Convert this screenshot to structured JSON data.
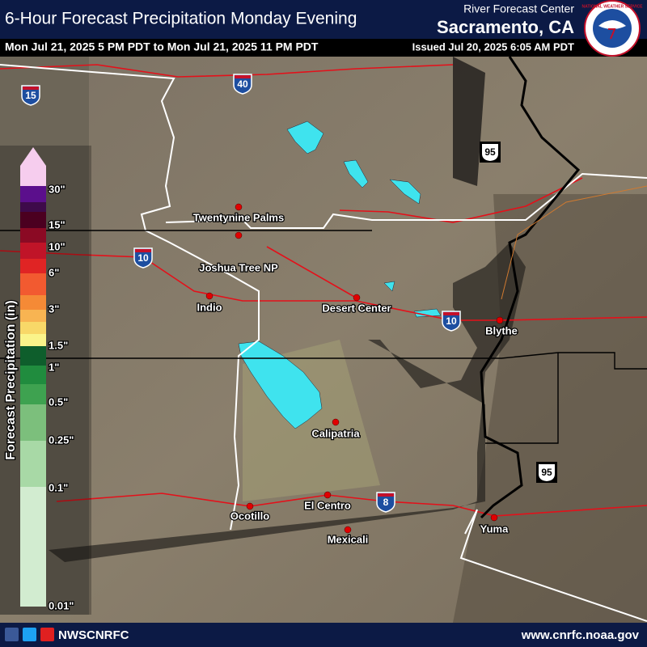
{
  "header": {
    "title": "6-Hour Forecast Precipitation Monday Evening",
    "valid_period": "Mon Jul 21, 2025 5 PM PDT to Mon Jul 21, 2025 11 PM PDT",
    "issued": "Issued Jul 20, 2025 6:05 AM PDT",
    "agency_line1": "River Forecast Center",
    "agency_line2": "Sacramento, CA",
    "logo_text": "NATIONAL WEATHER SERVICE"
  },
  "legend": {
    "title": "Forecast Precipitation (in)",
    "labels": [
      "30\"",
      "15\"",
      "10\"",
      "6\"",
      "3\"",
      "1.5\"",
      "1\"",
      "0.5\"",
      "0.25\"",
      "0.1\"",
      "0.01\""
    ],
    "colors": [
      "#f6cdee",
      "#5b0f8c",
      "#3e0a4a",
      "#4b0020",
      "#8b0a24",
      "#c01428",
      "#e02424",
      "#f25a30",
      "#f58a36",
      "#f8b452",
      "#f8d868",
      "#faf48a",
      "#0e5e2c",
      "#208c3e",
      "#3ea250",
      "#7cbf7c",
      "#a8d9a6",
      "#d2ecd0"
    ]
  },
  "cities": [
    "Twentynine Palms",
    "Joshua Tree NP",
    "Indio",
    "Desert Center",
    "Blythe",
    "Calipatria",
    "El Centro",
    "Ocotillo",
    "Mexicali",
    "Yuma"
  ],
  "interstates": [
    "15",
    "40",
    "10",
    "10",
    "8"
  ],
  "us_highways": [
    "95",
    "95"
  ],
  "footer": {
    "handle": "NWSCNRFC",
    "url": "www.cnrfc.noaa.gov"
  }
}
